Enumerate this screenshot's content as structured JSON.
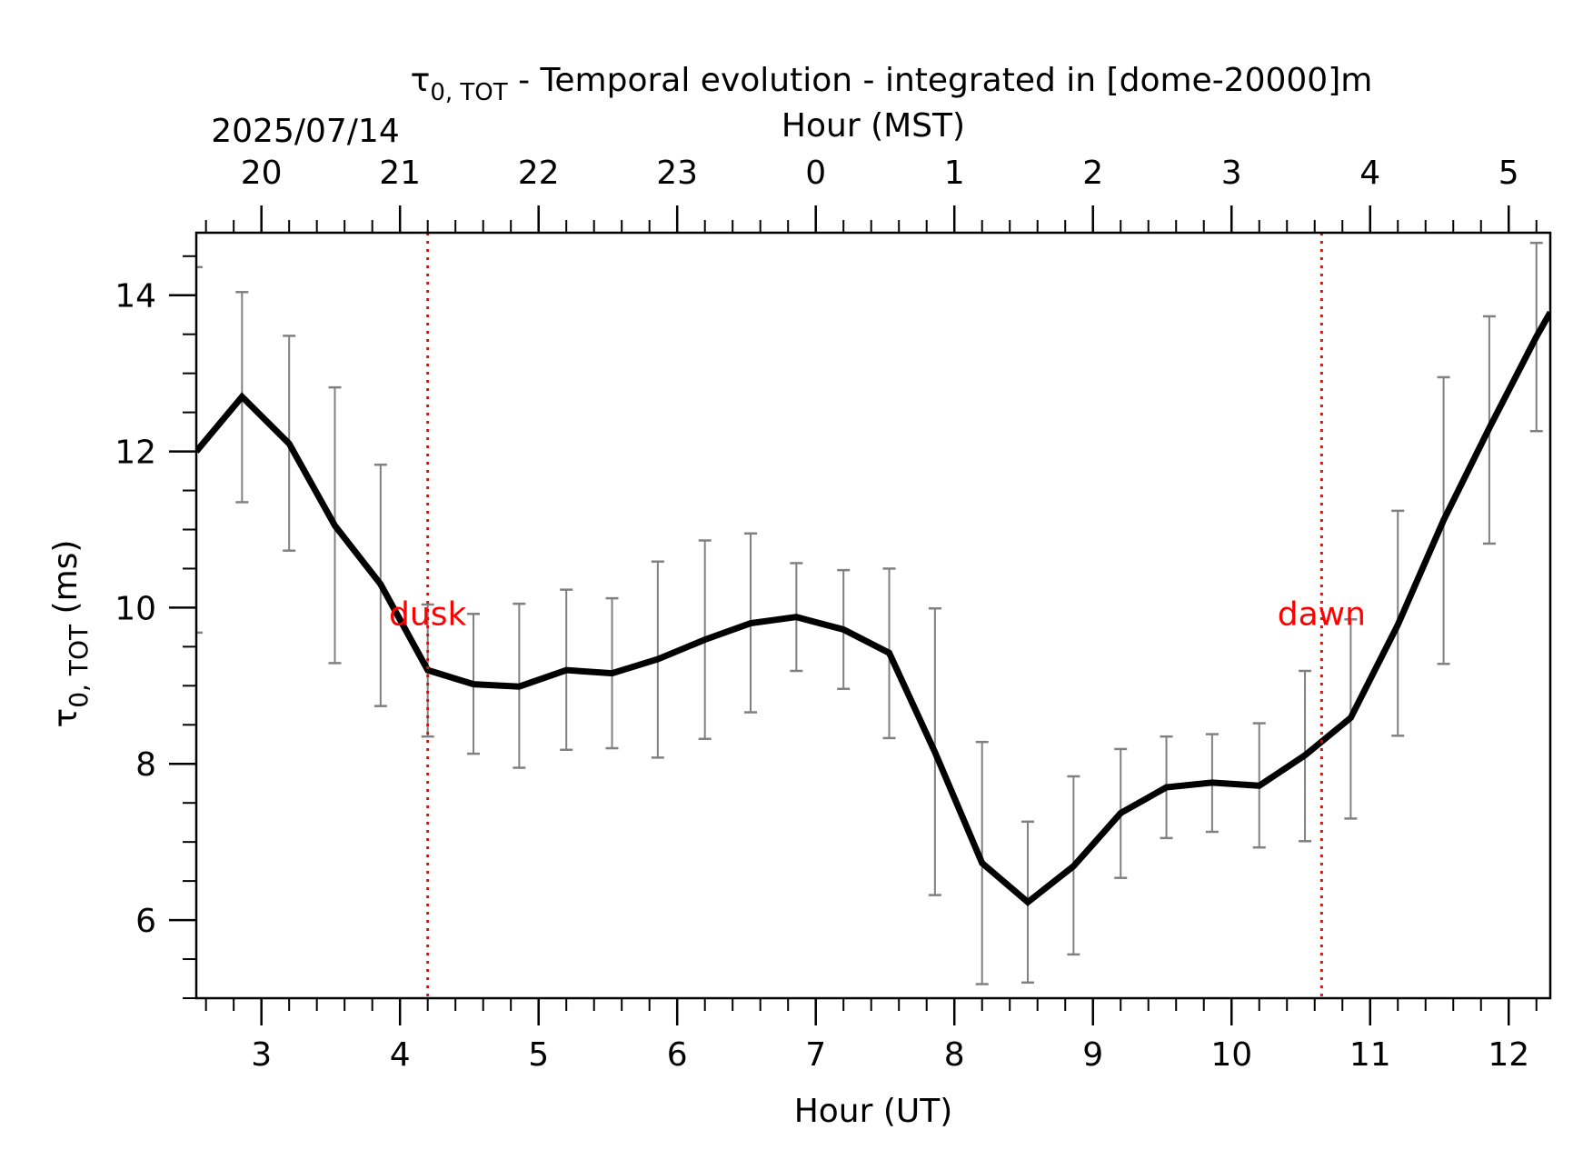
{
  "chart_data": {
    "type": "line",
    "title_main": "τ",
    "title_sub": "0, TOT",
    "title_rest": " - Temporal evolution - integrated in [dome-20000]m",
    "date_label": "2025/07/14",
    "top_axis_label": "Hour (MST)",
    "xlabel": "Hour (UT)",
    "ylabel_main": "τ",
    "ylabel_sub": "0, TOT",
    "ylabel_rest": " (ms)",
    "xlim": [
      2.53,
      12.3
    ],
    "ylim": [
      5.0,
      14.8
    ],
    "x_ticks": [
      3,
      4,
      5,
      6,
      7,
      8,
      9,
      10,
      11,
      12
    ],
    "x_tick_labels": [
      "3",
      "4",
      "5",
      "6",
      "7",
      "8",
      "9",
      "10",
      "11",
      "12"
    ],
    "y_ticks": [
      6,
      8,
      10,
      12,
      14
    ],
    "y_tick_labels": [
      "6",
      "8",
      "10",
      "12",
      "14"
    ],
    "top_ticks_ut": [
      3,
      4,
      5,
      6,
      7,
      8,
      9,
      10,
      11,
      12
    ],
    "top_tick_labels": [
      "20",
      "21",
      "22",
      "23",
      "0",
      "1",
      "2",
      "3",
      "4",
      "5"
    ],
    "vlines": [
      {
        "x": 4.2,
        "label": "dusk",
        "color": "#ff0000"
      },
      {
        "x": 10.65,
        "label": "dawn",
        "color": "#ff0000"
      }
    ],
    "grid": false,
    "line_color": "#000000",
    "errorbar_color": "#808080",
    "series": [
      {
        "x": [
          2.53,
          2.86,
          3.2,
          3.53,
          3.86,
          4.2,
          4.53,
          4.86,
          5.2,
          5.53,
          5.86,
          6.2,
          6.53,
          6.86,
          7.2,
          7.53,
          7.86,
          8.2,
          8.53,
          8.86,
          9.2,
          9.53,
          9.86,
          10.2,
          10.53,
          10.86,
          11.2,
          11.53,
          11.86,
          12.2,
          12.3
        ],
        "y": [
          12.0,
          12.7,
          12.1,
          11.05,
          10.3,
          9.2,
          9.02,
          8.99,
          9.2,
          9.16,
          9.34,
          9.59,
          9.8,
          9.88,
          9.72,
          9.42,
          8.15,
          6.73,
          6.23,
          6.69,
          7.37,
          7.7,
          7.76,
          7.72,
          8.11,
          8.59,
          9.78,
          11.12,
          12.3,
          13.47,
          13.78
        ],
        "err_x": [
          2.53,
          2.86,
          3.2,
          3.53,
          3.86,
          4.2,
          4.53,
          4.86,
          5.2,
          5.53,
          5.86,
          6.2,
          6.53,
          6.86,
          7.2,
          7.53,
          7.86,
          8.2,
          8.53,
          8.86,
          9.2,
          9.53,
          9.86,
          10.2,
          10.53,
          10.86,
          11.2,
          11.53,
          11.86,
          12.2
        ],
        "err_lo": [
          9.68,
          11.35,
          10.73,
          9.29,
          8.74,
          8.35,
          8.13,
          7.95,
          8.18,
          8.2,
          8.08,
          8.32,
          8.66,
          9.19,
          8.96,
          8.33,
          6.32,
          5.18,
          5.2,
          5.56,
          6.54,
          7.05,
          7.13,
          6.93,
          7.01,
          7.3,
          8.36,
          9.28,
          10.82,
          12.26
        ],
        "err_hi": [
          14.36,
          14.04,
          13.48,
          12.82,
          11.83,
          10.04,
          9.92,
          10.05,
          10.23,
          10.12,
          10.59,
          10.86,
          10.95,
          10.57,
          10.48,
          10.5,
          9.99,
          8.28,
          7.26,
          7.84,
          8.19,
          8.35,
          8.38,
          8.52,
          9.19,
          9.85,
          11.24,
          12.95,
          13.73,
          14.67
        ]
      }
    ]
  }
}
